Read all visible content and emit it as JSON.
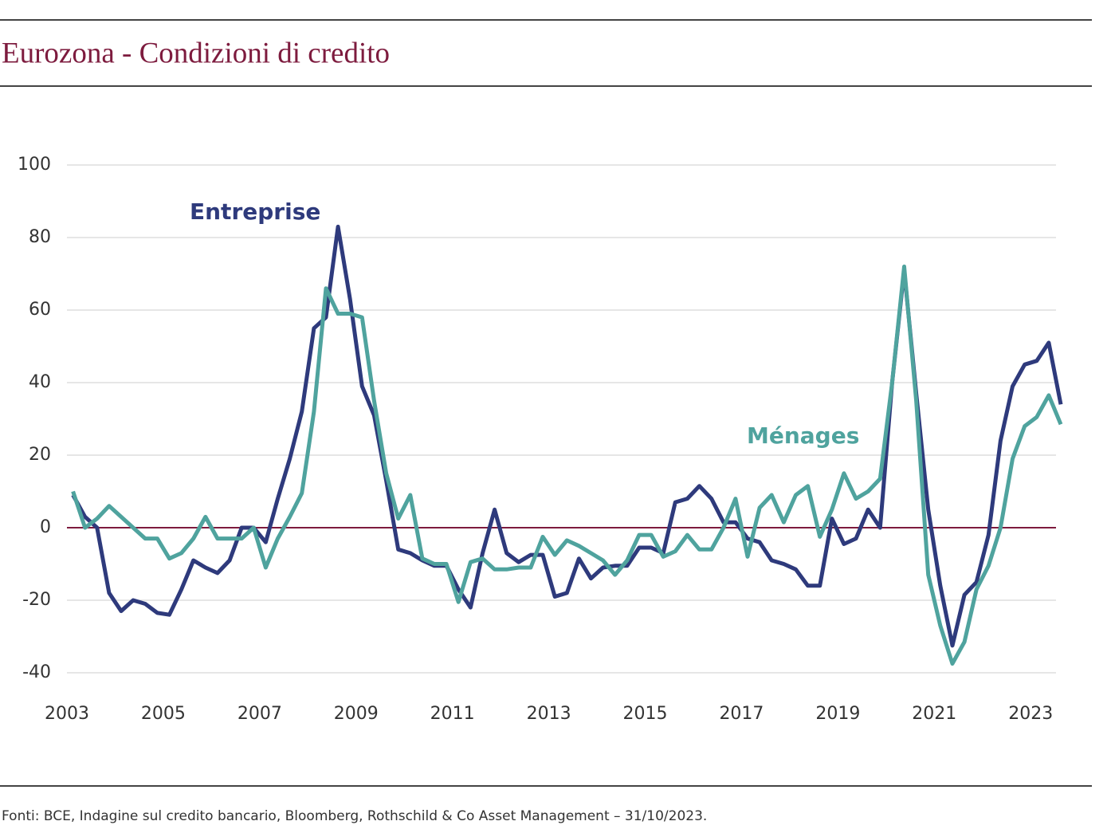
{
  "chart_data": {
    "type": "line",
    "title": "Eurozona - Condizioni di credito",
    "source": "Fonti: BCE, Indagine sul credito bancario, Bloomberg, Rothschild & Co Asset Management – 31/10/2023.",
    "x": [
      2003.125,
      2003.375,
      2003.625,
      2003.875,
      2004.125,
      2004.375,
      2004.625,
      2004.875,
      2005.125,
      2005.375,
      2005.625,
      2005.875,
      2006.125,
      2006.375,
      2006.625,
      2006.875,
      2007.125,
      2007.375,
      2007.625,
      2007.875,
      2008.125,
      2008.375,
      2008.625,
      2008.875,
      2009.125,
      2009.375,
      2009.625,
      2009.875,
      2010.125,
      2010.375,
      2010.625,
      2010.875,
      2011.125,
      2011.375,
      2011.625,
      2011.875,
      2012.125,
      2012.375,
      2012.625,
      2012.875,
      2013.125,
      2013.375,
      2013.625,
      2013.875,
      2014.125,
      2014.375,
      2014.625,
      2014.875,
      2015.125,
      2015.375,
      2015.625,
      2015.875,
      2016.125,
      2016.375,
      2016.625,
      2016.875,
      2017.125,
      2017.375,
      2017.625,
      2017.875,
      2018.125,
      2018.375,
      2018.625,
      2018.875,
      2019.125,
      2019.375,
      2019.625,
      2019.875,
      2020.125,
      2020.375,
      2020.625,
      2020.875,
      2021.125,
      2021.375,
      2021.625,
      2021.875,
      2022.125,
      2022.375,
      2022.625,
      2022.875,
      2023.125,
      2023.375,
      2023.625
    ],
    "series": [
      {
        "name": "Entreprise",
        "color": "#2e3a7c",
        "values": [
          9,
          3,
          0,
          -18,
          -23,
          -20,
          -21,
          -23.5,
          -24,
          -17,
          -9,
          -11,
          -12.5,
          -9,
          0,
          0,
          -4,
          8,
          19,
          32,
          55,
          58,
          83,
          63,
          39,
          31,
          13,
          -6,
          -7,
          -9,
          -10.5,
          -10.5,
          -17,
          -22,
          -7,
          5,
          -7,
          -9.5,
          -7.5,
          -7.5,
          -19,
          -18,
          -8.5,
          -14,
          -11,
          -10.5,
          -10.5,
          -5.5,
          -5.5,
          -7,
          7,
          8,
          11.5,
          8,
          1.5,
          1.5,
          -3,
          -4,
          -9,
          -10,
          -11.5,
          -16,
          -16,
          2.5,
          -4.5,
          -3,
          5,
          0,
          40,
          71,
          37,
          5,
          -16,
          -32.5,
          -18.5,
          -15,
          -2,
          24,
          39,
          45,
          46,
          51,
          34
        ]
      },
      {
        "name": "Ménages",
        "color": "#4fa39e",
        "values": [
          10,
          0,
          2.5,
          6,
          3,
          0,
          -3,
          -3,
          -8.5,
          -7,
          -3,
          3,
          -3,
          -3,
          -3,
          0,
          -11,
          -3,
          3,
          9.5,
          32,
          66,
          59,
          59,
          58,
          35,
          15,
          2.5,
          9,
          -8.5,
          -10,
          -10,
          -20.5,
          -9.5,
          -8.5,
          -11.5,
          -11.5,
          -11,
          -11,
          -2.5,
          -7.5,
          -3.5,
          -5,
          -7,
          -9,
          -13,
          -9,
          -2,
          -2,
          -8,
          -6.5,
          -2,
          -6,
          -6,
          0,
          8,
          -8,
          5.5,
          9,
          1.5,
          9,
          11.5,
          -2.5,
          5,
          15,
          8,
          10,
          13.5,
          40,
          72,
          35,
          -13,
          -27,
          -37.5,
          -31.5,
          -17,
          -10.5,
          0,
          19,
          28,
          30.5,
          36.5,
          28.5
        ]
      }
    ],
    "xlim": [
      2003,
      2023.625
    ],
    "xticks": [
      2003,
      2005,
      2007,
      2009,
      2011,
      2013,
      2015,
      2017,
      2019,
      2021,
      2023
    ],
    "ylim": [
      -40,
      100
    ],
    "yticks": [
      100,
      80,
      60,
      40,
      20,
      0,
      -20,
      -40
    ],
    "grid": true
  }
}
